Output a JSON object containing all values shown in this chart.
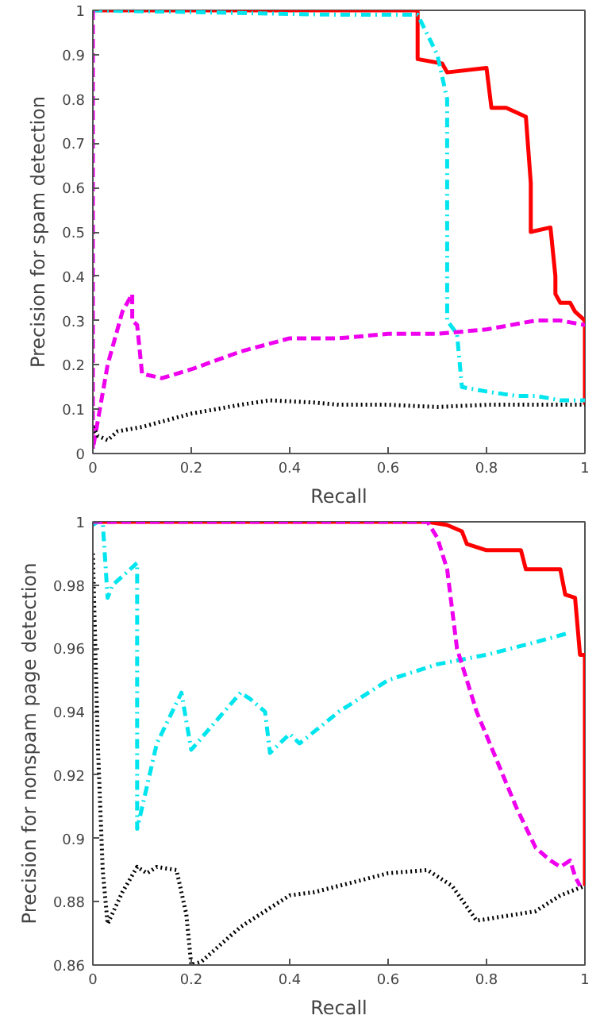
{
  "chart_data": [
    {
      "type": "line",
      "xlabel": "Recall",
      "ylabel": "Precision for spam detection",
      "xlim": [
        0,
        1
      ],
      "ylim": [
        0,
        1
      ],
      "xticks": [
        0,
        0.2,
        0.4,
        0.6,
        0.8,
        1
      ],
      "yticks": [
        0,
        0.1,
        0.2,
        0.3,
        0.4,
        0.5,
        0.6,
        0.7,
        0.8,
        0.9,
        1
      ],
      "grid": false,
      "series": [
        {
          "color": "#ff0000",
          "line_style": "solid",
          "x": [
            0,
            0.66,
            0.66,
            0.71,
            0.72,
            0.8,
            0.81,
            0.84,
            0.88,
            0.89,
            0.89,
            0.93,
            0.94,
            0.94,
            0.95,
            0.97,
            0.98,
            1,
            1
          ],
          "values": [
            1,
            1,
            0.89,
            0.88,
            0.86,
            0.87,
            0.78,
            0.78,
            0.76,
            0.61,
            0.5,
            0.51,
            0.4,
            0.36,
            0.34,
            0.34,
            0.32,
            0.3,
            0.11
          ]
        },
        {
          "color": "#00e5ee",
          "line_style": "dashdot",
          "x": [
            0,
            0.5,
            0.66,
            0.7,
            0.72,
            0.72,
            0.72,
            0.74,
            0.75,
            0.8,
            0.86,
            0.9,
            0.95,
            1
          ],
          "values": [
            1,
            0.99,
            0.99,
            0.9,
            0.8,
            0.5,
            0.3,
            0.27,
            0.15,
            0.14,
            0.13,
            0.13,
            0.12,
            0.12
          ]
        },
        {
          "color": "#ee00ee",
          "line_style": "dashed",
          "x": [
            0,
            0,
            0.03,
            0.06,
            0.08,
            0.08,
            0.09,
            0.1,
            0.14,
            0.2,
            0.3,
            0.4,
            0.5,
            0.6,
            0.7,
            0.8,
            0.9,
            0.95,
            1
          ],
          "values": [
            1,
            0.01,
            0.2,
            0.32,
            0.36,
            0.3,
            0.29,
            0.18,
            0.17,
            0.19,
            0.23,
            0.26,
            0.26,
            0.27,
            0.27,
            0.28,
            0.3,
            0.3,
            0.29
          ]
        },
        {
          "color": "#000000",
          "line_style": "dotted",
          "x": [
            0,
            0.01,
            0.03,
            0.05,
            0.1,
            0.2,
            0.3,
            0.36,
            0.45,
            0.5,
            0.6,
            0.7,
            0.8,
            1
          ],
          "values": [
            0.06,
            0.04,
            0.03,
            0.05,
            0.06,
            0.09,
            0.11,
            0.12,
            0.115,
            0.11,
            0.11,
            0.105,
            0.11,
            0.11
          ]
        }
      ]
    },
    {
      "type": "line",
      "xlabel": "Recall",
      "ylabel": "Precision for nonspam page detection",
      "xlim": [
        0,
        1
      ],
      "ylim": [
        0.86,
        1
      ],
      "xticks": [
        0,
        0.2,
        0.4,
        0.6,
        0.8,
        1
      ],
      "yticks": [
        0.86,
        0.88,
        0.9,
        0.92,
        0.94,
        0.96,
        0.98,
        1
      ],
      "grid": false,
      "series": [
        {
          "color": "#ff0000",
          "line_style": "solid",
          "x": [
            0,
            0.68,
            0.72,
            0.75,
            0.76,
            0.8,
            0.87,
            0.88,
            0.95,
            0.96,
            0.98,
            0.99,
            1,
            1
          ],
          "values": [
            1,
            1,
            0.999,
            0.997,
            0.993,
            0.991,
            0.991,
            0.985,
            0.985,
            0.977,
            0.976,
            0.958,
            0.958,
            0.885
          ]
        },
        {
          "color": "#00e5ee",
          "line_style": "dashdot",
          "x": [
            0,
            0.01,
            0.02,
            0.03,
            0.04,
            0.09,
            0.09,
            0.09,
            0.13,
            0.18,
            0.2,
            0.3,
            0.32,
            0.35,
            0.36,
            0.4,
            0.42,
            0.5,
            0.6,
            0.7,
            0.8,
            0.9,
            0.97
          ],
          "values": [
            0.999,
            1,
            1,
            0.976,
            0.98,
            0.987,
            0.95,
            0.903,
            0.93,
            0.946,
            0.928,
            0.946,
            0.944,
            0.94,
            0.927,
            0.933,
            0.93,
            0.94,
            0.95,
            0.955,
            0.958,
            0.962,
            0.965
          ]
        },
        {
          "color": "#ee00ee",
          "line_style": "dashed",
          "x": [
            0,
            0.68,
            0.7,
            0.72,
            0.74,
            0.76,
            0.78,
            0.82,
            0.86,
            0.9,
            0.93,
            0.95,
            0.97,
            0.98,
            0.99
          ],
          "values": [
            1,
            1,
            0.995,
            0.985,
            0.96,
            0.95,
            0.94,
            0.925,
            0.91,
            0.897,
            0.893,
            0.891,
            0.893,
            0.888,
            0.885
          ]
        },
        {
          "color": "#000000",
          "line_style": "dotted",
          "x": [
            0,
            0.01,
            0.02,
            0.03,
            0.06,
            0.09,
            0.11,
            0.13,
            0.17,
            0.19,
            0.2,
            0.22,
            0.3,
            0.4,
            0.45,
            0.5,
            0.6,
            0.68,
            0.73,
            0.78,
            0.82,
            0.9,
            0.95,
            1
          ],
          "values": [
            0.99,
            0.93,
            0.89,
            0.873,
            0.883,
            0.891,
            0.889,
            0.891,
            0.89,
            0.876,
            0.86,
            0.861,
            0.872,
            0.882,
            0.883,
            0.885,
            0.889,
            0.89,
            0.885,
            0.874,
            0.875,
            0.877,
            0.882,
            0.885
          ]
        }
      ]
    }
  ]
}
